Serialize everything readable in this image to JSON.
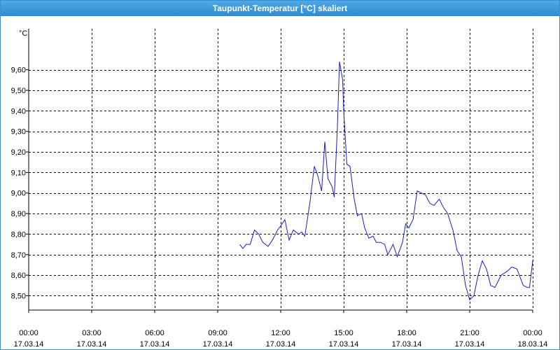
{
  "window": {
    "title": "Taupunkt-Temperatur [°C] skaliert"
  },
  "colors": {
    "line": "#1a1ad4",
    "grid": "#000000",
    "axis": "#000000",
    "titlebar": "#3c8fd0"
  },
  "chart_data": {
    "type": "line",
    "title": "Taupunkt-Temperatur [°C] skaliert",
    "ylabel": "°C",
    "ylim": [
      8.43,
      9.8
    ],
    "xlim": [
      0,
      24
    ],
    "grid": true,
    "y_ticks": [
      8.5,
      8.6,
      8.7,
      8.8,
      8.9,
      9.0,
      9.1,
      9.2,
      9.3,
      9.4,
      9.5,
      9.6
    ],
    "y_tick_labels": [
      "8,50",
      "8,60",
      "8,70",
      "8,80",
      "8,90",
      "9,00",
      "9,10",
      "9,20",
      "9,30",
      "9,40",
      "9,50",
      "9,60"
    ],
    "x_ticks": [
      0,
      3,
      6,
      9,
      12,
      15,
      18,
      21,
      24
    ],
    "x_tick_labels": [
      [
        "00:00",
        "17.03.14"
      ],
      [
        "03:00",
        "17.03.14"
      ],
      [
        "06:00",
        "17.03.14"
      ],
      [
        "09:00",
        "17.03.14"
      ],
      [
        "12:00",
        "17.03.14"
      ],
      [
        "15:00",
        "17.03.14"
      ],
      [
        "18:00",
        "17.03.14"
      ],
      [
        "21:00",
        "17.03.14"
      ],
      [
        "00:00",
        "18.03.14"
      ]
    ],
    "series": [
      {
        "x": [
          10.05,
          10.2,
          10.35,
          10.55,
          10.75,
          10.95,
          11.15,
          11.4,
          11.6,
          11.85,
          12.0,
          12.2,
          12.4,
          12.6,
          12.85,
          13.0,
          13.15,
          13.4,
          13.6,
          13.75,
          13.95,
          14.1,
          14.25,
          14.45,
          14.55,
          14.7,
          14.8,
          14.95,
          15.0,
          15.15,
          15.3,
          15.5,
          15.65,
          15.85,
          16.0,
          16.2,
          16.4,
          16.55,
          16.75,
          16.95,
          17.1,
          17.35,
          17.55,
          17.8,
          17.95,
          18.1,
          18.3,
          18.5,
          18.7,
          18.9,
          19.1,
          19.3,
          19.55,
          19.75,
          19.95,
          20.2,
          20.4,
          20.6,
          20.8,
          21.0,
          21.2,
          21.4,
          21.6,
          21.8,
          22.0,
          22.2,
          22.5,
          22.8,
          23.0,
          23.25,
          23.55,
          23.75,
          23.85
        ],
        "y": [
          8.75,
          8.73,
          8.75,
          8.75,
          8.82,
          8.8,
          8.76,
          8.74,
          8.77,
          8.82,
          8.84,
          8.87,
          8.77,
          8.82,
          8.8,
          8.81,
          8.79,
          8.96,
          9.13,
          9.09,
          9.01,
          9.25,
          9.07,
          9.03,
          8.98,
          9.32,
          9.64,
          9.55,
          9.4,
          9.14,
          9.13,
          8.97,
          8.89,
          8.9,
          8.83,
          8.78,
          8.79,
          8.76,
          8.76,
          8.75,
          8.7,
          8.75,
          8.69,
          8.76,
          8.85,
          8.83,
          8.87,
          9.01,
          9.0,
          8.99,
          8.95,
          8.94,
          8.97,
          8.93,
          8.9,
          8.82,
          8.72,
          8.69,
          8.55,
          8.48,
          8.5,
          8.6,
          8.67,
          8.63,
          8.55,
          8.54,
          8.6,
          8.62,
          8.64,
          8.63,
          8.55,
          8.54,
          8.54
        ]
      }
    ],
    "segment_end": {
      "x": [
        23.85,
        24.0
      ],
      "y": [
        8.54,
        8.67
      ]
    }
  }
}
